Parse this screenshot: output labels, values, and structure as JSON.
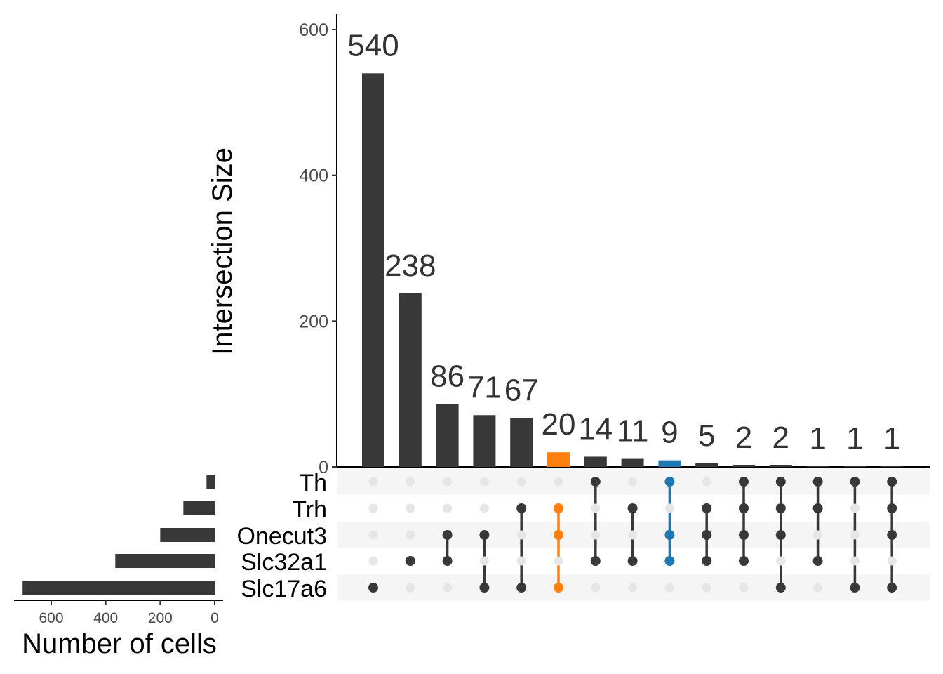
{
  "chart_data": {
    "type": "upset",
    "main_bars": {
      "ylabel": "Intersection Size",
      "yticks": [
        0,
        200,
        400,
        600
      ],
      "ylim": [
        0,
        600
      ],
      "values": [
        540,
        238,
        86,
        71,
        67,
        20,
        14,
        11,
        9,
        5,
        2,
        2,
        1,
        1,
        1
      ],
      "labels": [
        "540",
        "238",
        "86",
        "71",
        "67",
        "20",
        "14",
        "11",
        "9",
        "5",
        "2",
        "2",
        "1",
        "1",
        "1"
      ],
      "colors": [
        "#383838",
        "#383838",
        "#383838",
        "#383838",
        "#383838",
        "#ff7f0e",
        "#383838",
        "#383838",
        "#1f77b4",
        "#383838",
        "#383838",
        "#383838",
        "#383838",
        "#383838",
        "#383838"
      ]
    },
    "sets": {
      "names": [
        "Th",
        "Trh",
        "Onecut3",
        "Slc32a1",
        "Slc17a6"
      ],
      "sizes": [
        30,
        115,
        200,
        365,
        705
      ],
      "xlabel": "Number of cells",
      "xticks": [
        600,
        400,
        200,
        0
      ]
    },
    "intersections": [
      [
        "Slc17a6"
      ],
      [
        "Slc32a1"
      ],
      [
        "Onecut3",
        "Slc32a1"
      ],
      [
        "Onecut3",
        "Slc17a6"
      ],
      [
        "Trh",
        "Slc17a6"
      ],
      [
        "Trh",
        "Onecut3",
        "Slc17a6"
      ],
      [
        "Th",
        "Slc32a1"
      ],
      [
        "Trh",
        "Slc32a1"
      ],
      [
        "Th",
        "Onecut3",
        "Slc32a1"
      ],
      [
        "Trh",
        "Onecut3",
        "Slc32a1"
      ],
      [
        "Th",
        "Trh",
        "Onecut3",
        "Slc32a1"
      ],
      [
        "Th",
        "Trh",
        "Onecut3",
        "Slc17a6"
      ],
      [
        "Th",
        "Trh",
        "Slc32a1"
      ],
      [
        "Th",
        "Slc17a6"
      ],
      [
        "Th",
        "Trh",
        "Onecut3",
        "Slc17a6"
      ]
    ],
    "highlight_colors": {
      "default": "#383838",
      "orange": "#ff7f0e",
      "blue": "#1f77b4",
      "empty_dot": "#e6e6e6",
      "stripe": "#f5f5f5"
    }
  }
}
